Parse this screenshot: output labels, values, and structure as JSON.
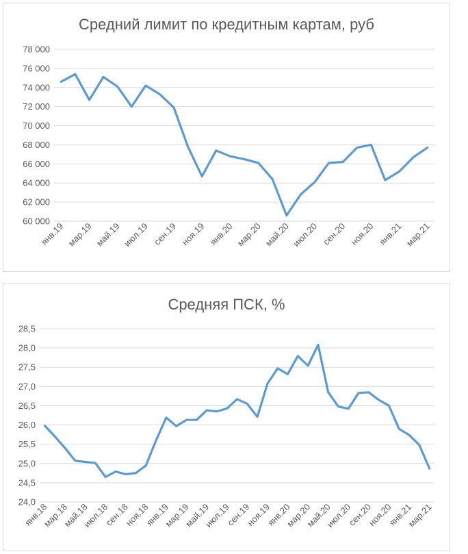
{
  "colors": {
    "series": "#5b9bd5",
    "grid": "#d9d9d9",
    "text": "#595959"
  },
  "chart_data": [
    {
      "type": "line",
      "title": "Средний лимит по кредитным картам, руб",
      "xlabel": "",
      "ylabel": "",
      "ylim": [
        60000,
        78000
      ],
      "yticks": [
        60000,
        62000,
        64000,
        66000,
        68000,
        70000,
        72000,
        74000,
        76000,
        78000
      ],
      "ytick_labels": [
        "60 000",
        "62 000",
        "64 000",
        "66 000",
        "68 000",
        "70 000",
        "72 000",
        "74 000",
        "76 000",
        "78 000"
      ],
      "grid": true,
      "x": [
        "янв.19",
        "фев.19",
        "мар.19",
        "апр.19",
        "май.19",
        "июн.19",
        "июл.19",
        "авг.19",
        "сен.19",
        "окт.19",
        "ноя.19",
        "дек.19",
        "янв.20",
        "фев.20",
        "мар.20",
        "апр.20",
        "май.20",
        "июн.20",
        "июл.20",
        "авг.20",
        "сен.20",
        "окт.20",
        "ноя.20",
        "дек.20",
        "янв.21",
        "фев.21",
        "мар.21"
      ],
      "xtick_labels": [
        "янв.19",
        "",
        "мар.19",
        "",
        "май.19",
        "",
        "июл.19",
        "",
        "сен.19",
        "",
        "ноя.19",
        "",
        "янв.20",
        "",
        "мар.20",
        "",
        "май.20",
        "",
        "июл.20",
        "",
        "сен.20",
        "",
        "ноя.20",
        "",
        "янв.21",
        "",
        "мар.21"
      ],
      "series": [
        {
          "values": [
            74600,
            75400,
            72700,
            75100,
            74100,
            72000,
            74200,
            73300,
            71900,
            67800,
            64700,
            67400,
            66800,
            66500,
            66100,
            64400,
            60600,
            62800,
            64100,
            66100,
            66200,
            67700,
            68000,
            64300,
            65200,
            66700,
            67700
          ]
        }
      ]
    },
    {
      "type": "line",
      "title": "Средняя ПСК, %",
      "xlabel": "",
      "ylabel": "",
      "ylim": [
        24.0,
        28.5
      ],
      "yticks": [
        24.0,
        24.5,
        25.0,
        25.5,
        26.0,
        26.5,
        27.0,
        27.5,
        28.0,
        28.5
      ],
      "ytick_labels": [
        "24,0",
        "24,5",
        "25,0",
        "25,5",
        "26,0",
        "26,5",
        "27,0",
        "27,5",
        "28,0",
        "28,5"
      ],
      "grid": true,
      "x": [
        "янв.18",
        "фев.18",
        "мар.18",
        "апр.18",
        "май.18",
        "июн.18",
        "июл.18",
        "авг.18",
        "сен.18",
        "окт.18",
        "ноя.18",
        "дек.18",
        "янв.19",
        "фев.19",
        "мар.19",
        "апр.19",
        "май.19",
        "июн.19",
        "июл.19",
        "авг.19",
        "сен.19",
        "окт.19",
        "ноя.19",
        "дек.19",
        "янв.20",
        "фев.20",
        "мар.20",
        "апр.20",
        "май.20",
        "июн.20",
        "июл.20",
        "авг.20",
        "сен.20",
        "окт.20",
        "ноя.20",
        "дек.20",
        "янв.21",
        "фев.21",
        "мар.21"
      ],
      "xtick_labels": [
        "янв.18",
        "",
        "мар.18",
        "",
        "май.18",
        "",
        "июл.18",
        "",
        "сен.18",
        "",
        "ноя.18",
        "",
        "янв.19",
        "",
        "мар.19",
        "",
        "май.19",
        "",
        "июл.19",
        "",
        "сен.19",
        "",
        "ноя.19",
        "",
        "янв.20",
        "",
        "мар.20",
        "",
        "май.20",
        "",
        "июл.20",
        "",
        "сен.20",
        "",
        "ноя.20",
        "",
        "янв.21",
        "",
        "мар.21"
      ],
      "series": [
        {
          "values": [
            25.98,
            25.7,
            25.4,
            25.07,
            25.04,
            25.01,
            24.65,
            24.79,
            24.72,
            24.75,
            24.95,
            25.6,
            26.19,
            25.97,
            26.13,
            26.13,
            26.38,
            26.35,
            26.43,
            26.67,
            26.55,
            26.21,
            27.07,
            27.47,
            27.32,
            27.79,
            27.54,
            28.08,
            26.85,
            26.48,
            26.42,
            26.83,
            26.85,
            26.65,
            26.5,
            25.9,
            25.74,
            25.48,
            24.87
          ]
        }
      ]
    }
  ]
}
